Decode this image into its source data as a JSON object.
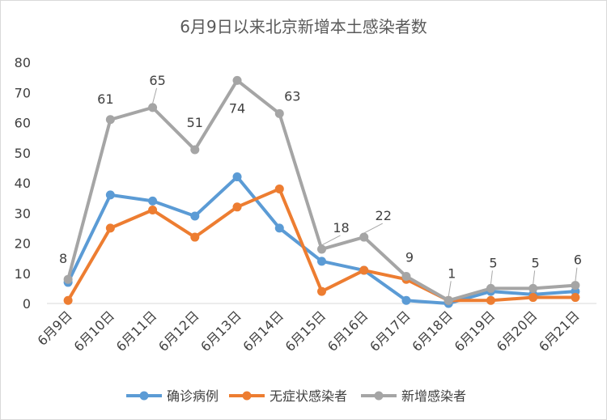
{
  "chart_data": {
    "type": "line",
    "title": "6月9日以来北京新增本土感染者数",
    "categories": [
      "6月9日",
      "6月10日",
      "6月11日",
      "6月12日",
      "6月13日",
      "6月14日",
      "6月15日",
      "6月16日",
      "6月17日",
      "6月18日",
      "6月19日",
      "6月20日",
      "6月21日"
    ],
    "ylim": [
      0,
      80
    ],
    "yticks": [
      0,
      10,
      20,
      30,
      40,
      50,
      60,
      70,
      80
    ],
    "grid": false,
    "legend_position": "bottom",
    "series": [
      {
        "name": "确诊病例",
        "color": "#5b9bd5",
        "values": [
          7,
          36,
          34,
          29,
          42,
          25,
          14,
          11,
          1,
          0,
          4,
          3,
          4
        ]
      },
      {
        "name": "无症状感染者",
        "color": "#ed7d31",
        "values": [
          1,
          25,
          31,
          22,
          32,
          38,
          4,
          11,
          8,
          1,
          1,
          2,
          2
        ]
      },
      {
        "name": "新增感染者",
        "color": "#a5a5a5",
        "values": [
          8,
          61,
          65,
          51,
          74,
          63,
          18,
          22,
          9,
          1,
          5,
          5,
          6
        ]
      }
    ],
    "data_labels": [
      "8",
      "61",
      "65",
      "51",
      "74",
      "63",
      "18",
      "22",
      "9",
      "1",
      "5",
      "5",
      "6"
    ]
  }
}
